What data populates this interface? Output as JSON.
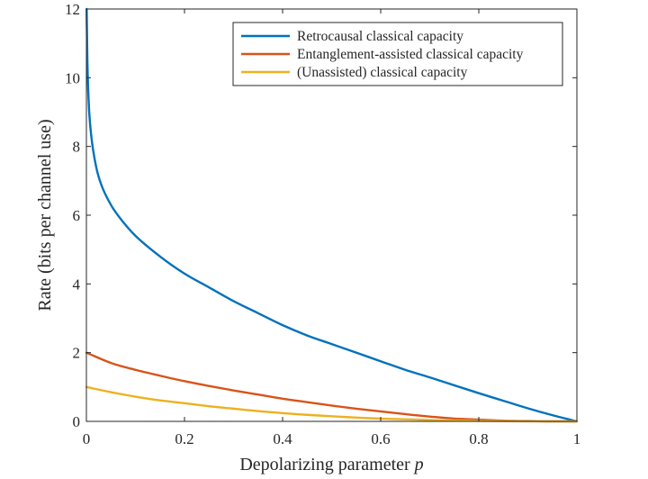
{
  "chart_data": {
    "type": "line",
    "xlabel": "Depolarizing parameter",
    "xlabel_var": "p",
    "ylabel": "Rate (bits per channel use)",
    "xlim": [
      0,
      1
    ],
    "ylim": [
      0,
      12
    ],
    "xticks": [
      0,
      0.2,
      0.4,
      0.6,
      0.8,
      1
    ],
    "xtick_labels": [
      "0",
      "0.2",
      "0.4",
      "0.6",
      "0.8",
      "1"
    ],
    "yticks": [
      0,
      2,
      4,
      6,
      8,
      10,
      12
    ],
    "ytick_labels": [
      "0",
      "2",
      "4",
      "6",
      "8",
      "10",
      "12"
    ],
    "grid": false,
    "legend_position": "top-right",
    "series": [
      {
        "name": "Retrocausal classical capacity",
        "color": "#0072BD",
        "x": [
          0.0005,
          0.002,
          0.005,
          0.01,
          0.02,
          0.03,
          0.05,
          0.075,
          0.1,
          0.15,
          0.2,
          0.25,
          0.3,
          0.35,
          0.4,
          0.45,
          0.5,
          0.55,
          0.6,
          0.65,
          0.7,
          0.75,
          0.8,
          0.85,
          0.9,
          0.95,
          1.0
        ],
        "y": [
          12.0,
          10.5,
          9.2,
          8.3,
          7.4,
          6.9,
          6.3,
          5.8,
          5.4,
          4.8,
          4.3,
          3.9,
          3.5,
          3.15,
          2.8,
          2.5,
          2.25,
          2.0,
          1.75,
          1.5,
          1.28,
          1.05,
          0.82,
          0.6,
          0.38,
          0.18,
          0.0
        ]
      },
      {
        "name": "Entanglement-assisted classical capacity",
        "color": "#D95319",
        "x": [
          0,
          0.05,
          0.1,
          0.15,
          0.2,
          0.25,
          0.3,
          0.35,
          0.4,
          0.45,
          0.5,
          0.55,
          0.6,
          0.65,
          0.7,
          0.75,
          0.8,
          0.85,
          0.9,
          0.95,
          1.0
        ],
        "y": [
          2.0,
          1.7,
          1.5,
          1.33,
          1.17,
          1.03,
          0.9,
          0.78,
          0.66,
          0.56,
          0.46,
          0.37,
          0.29,
          0.21,
          0.14,
          0.08,
          0.05,
          0.02,
          0.01,
          0.0,
          0.0
        ]
      },
      {
        "name": "(Unassisted) classical capacity",
        "color": "#EDB120",
        "x": [
          0,
          0.05,
          0.1,
          0.15,
          0.2,
          0.25,
          0.3,
          0.35,
          0.4,
          0.45,
          0.5,
          0.55,
          0.6,
          0.65,
          0.7,
          0.75,
          0.8,
          0.85,
          0.9,
          0.95,
          1.0
        ],
        "y": [
          1.0,
          0.85,
          0.72,
          0.61,
          0.53,
          0.44,
          0.37,
          0.3,
          0.24,
          0.19,
          0.15,
          0.11,
          0.08,
          0.06,
          0.04,
          0.025,
          0.015,
          0.008,
          0.003,
          0.001,
          0.0
        ]
      }
    ]
  }
}
